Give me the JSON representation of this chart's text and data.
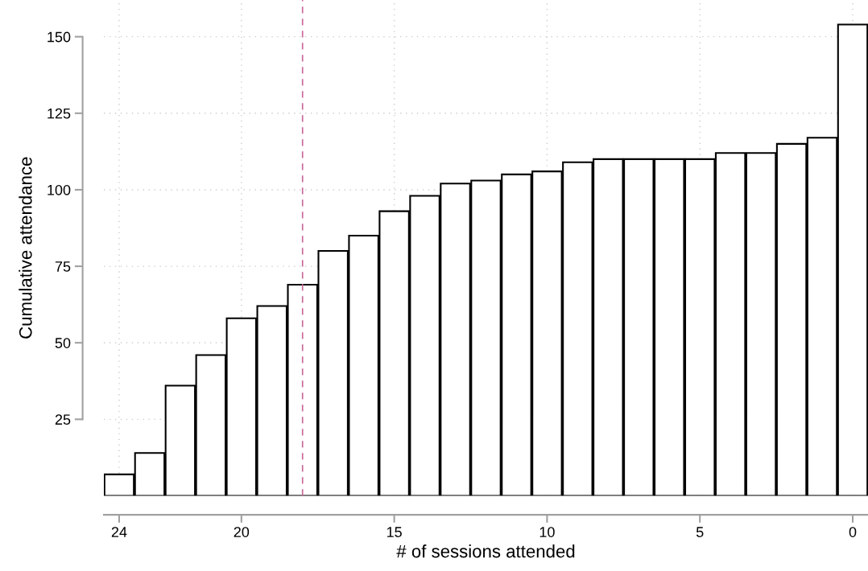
{
  "chart_data": {
    "type": "bar",
    "xlabel": "# of sessions attended",
    "ylabel": "Cumulative attendance",
    "x": [
      24,
      23,
      22,
      21,
      20,
      19,
      18,
      17,
      16,
      15,
      14,
      13,
      12,
      11,
      10,
      9,
      8,
      7,
      6,
      5,
      4,
      3,
      2,
      1,
      0
    ],
    "values": [
      7,
      14,
      36,
      46,
      58,
      62,
      69,
      80,
      85,
      93,
      98,
      102,
      103,
      105,
      106,
      109,
      110,
      110,
      110,
      110,
      112,
      112,
      115,
      117,
      154
    ],
    "color": "#ffffff",
    "xlim": [
      24.5,
      -0.5
    ],
    "xticks": [
      24,
      20,
      15,
      10,
      5,
      0
    ],
    "ylim": [
      0,
      162
    ],
    "yticks": [
      25,
      50,
      75,
      100,
      125,
      150
    ],
    "grid": true,
    "ref_lines": [
      {
        "axis": "x",
        "value": 18,
        "color": "#c8689a",
        "line_style": "dashed"
      }
    ]
  }
}
